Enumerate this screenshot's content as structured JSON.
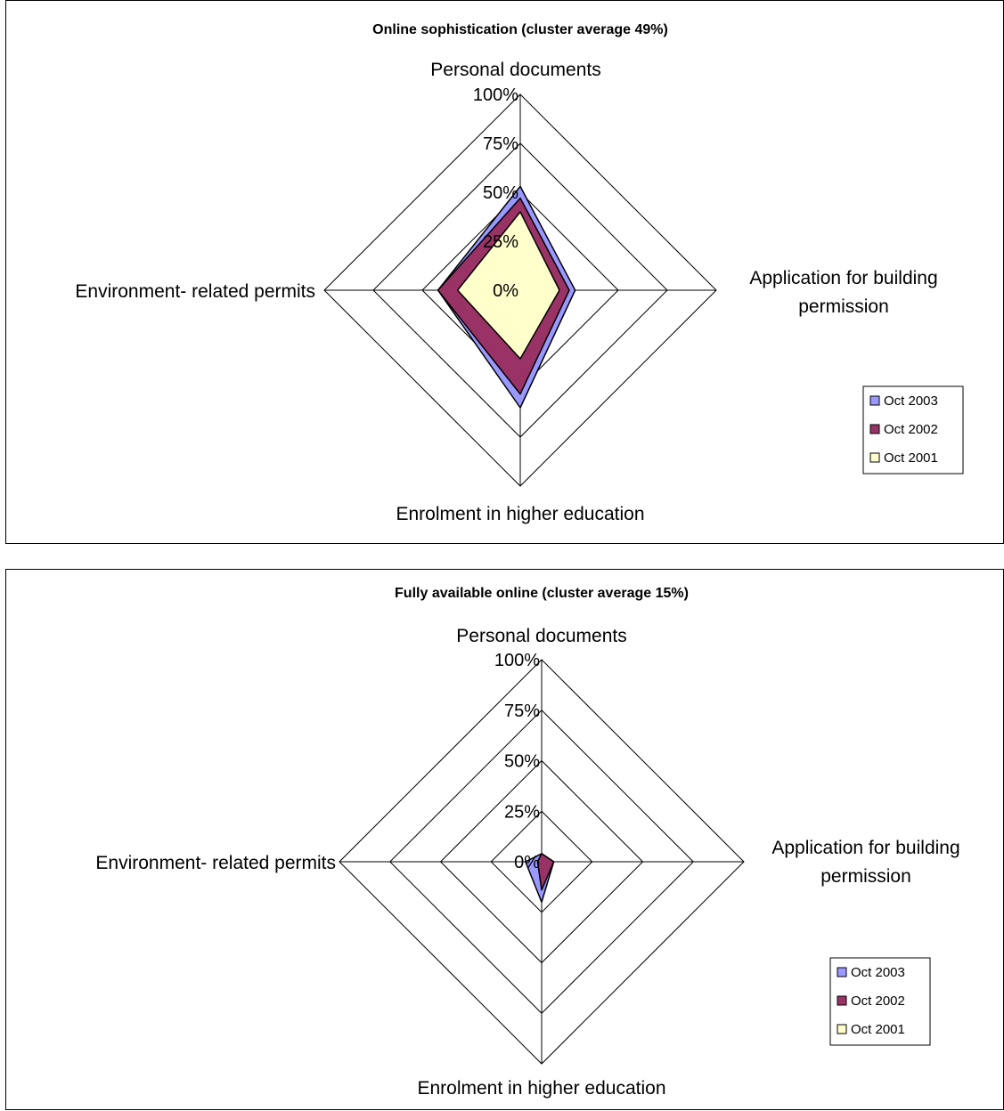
{
  "chart_data": [
    {
      "type": "radar",
      "title": "Online sophistication (cluster average 49%)",
      "axes": [
        "Personal documents",
        "Application for building permission",
        "Enrolment in higher education",
        "Environment- related permits"
      ],
      "ticks": [
        "0%",
        "25%",
        "50%",
        "75%",
        "100%"
      ],
      "ylim": [
        0,
        100
      ],
      "grid": true,
      "legend_position": "right",
      "series": [
        {
          "name": "Oct 2003",
          "color": "#9999ff",
          "values": [
            53,
            28,
            60,
            42
          ]
        },
        {
          "name": "Oct 2002",
          "color": "#993366",
          "values": [
            47,
            25,
            53,
            42
          ]
        },
        {
          "name": "Oct 2001",
          "color": "#ffffcc",
          "values": [
            40,
            20,
            35,
            32
          ]
        }
      ]
    },
    {
      "type": "radar",
      "title": "Fully available online (cluster average 15%)",
      "axes": [
        "Personal documents",
        "Application for building permission",
        "Enrolment in higher education",
        "Environment- related permits"
      ],
      "ticks": [
        "0%",
        "25%",
        "50%",
        "75%",
        "100%"
      ],
      "ylim": [
        0,
        100
      ],
      "grid": true,
      "legend_position": "right",
      "series": [
        {
          "name": "Oct 2003",
          "color": "#9999ff",
          "values": [
            4,
            6,
            20,
            8
          ]
        },
        {
          "name": "Oct 2002",
          "color": "#993366",
          "values": [
            4,
            6,
            14,
            2
          ]
        },
        {
          "name": "Oct 2001",
          "color": "#ffffcc",
          "values": [
            0,
            0,
            0,
            0
          ]
        }
      ]
    }
  ]
}
